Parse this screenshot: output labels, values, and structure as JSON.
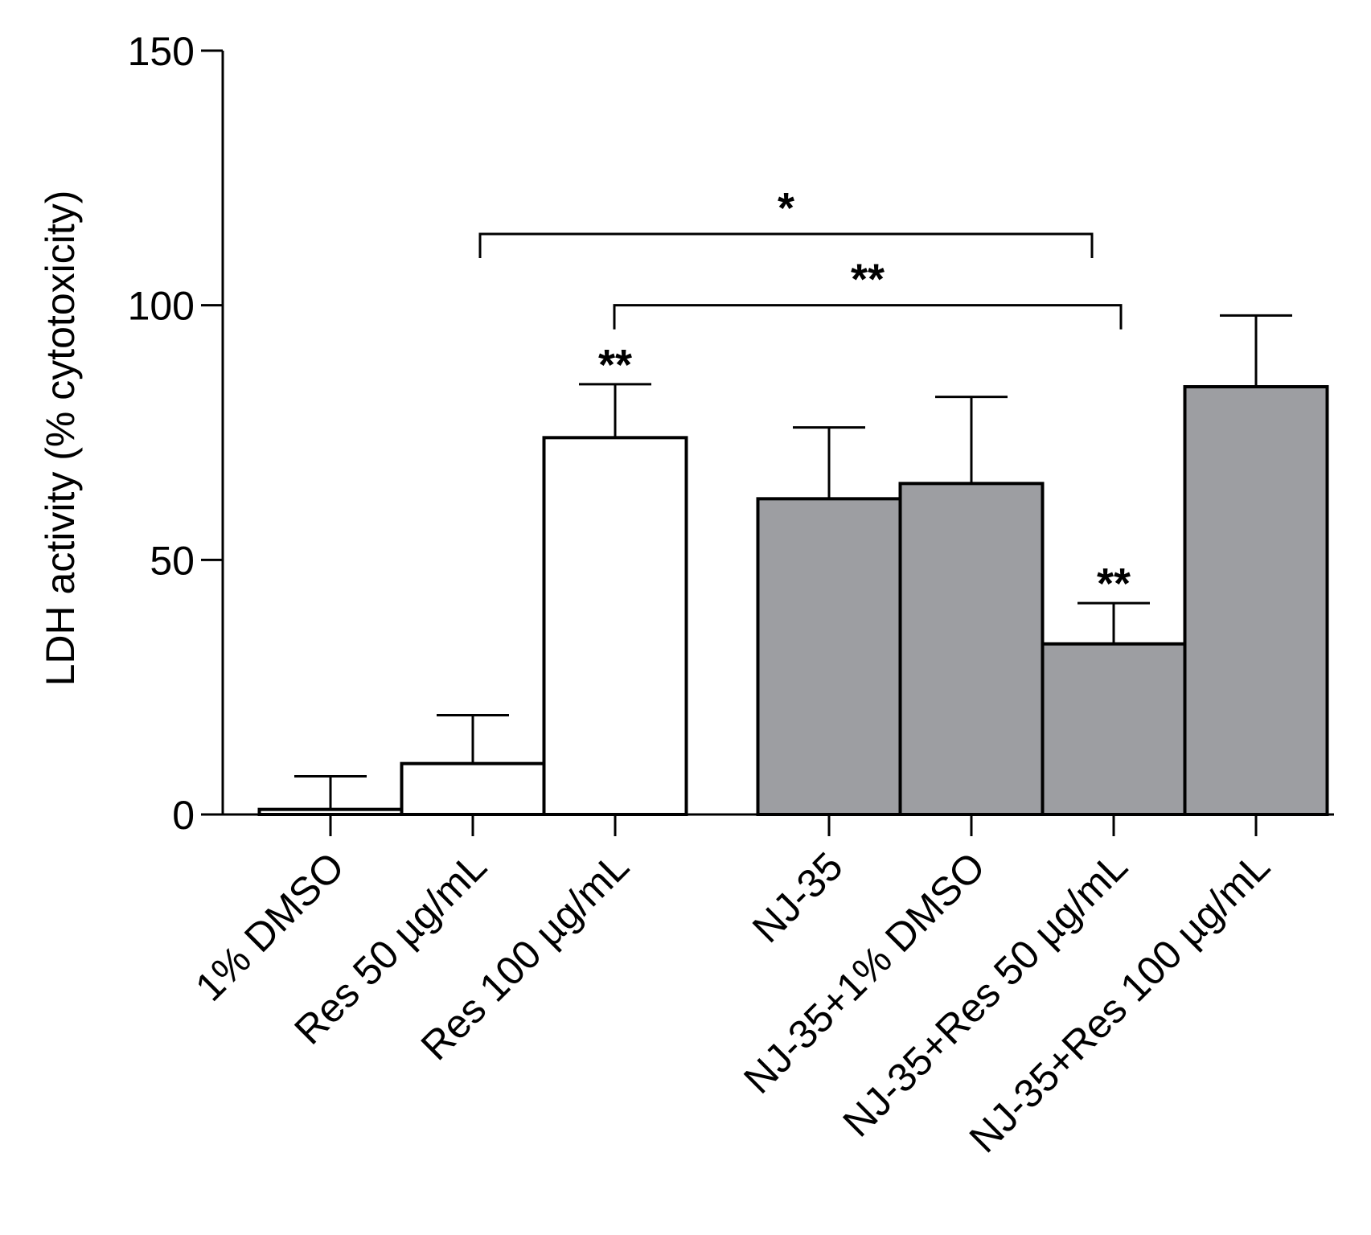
{
  "chart_data": {
    "type": "bar",
    "title": "",
    "xlabel": "",
    "ylabel": "LDH activity (% cytotoxicity)",
    "ylim": [
      0,
      150
    ],
    "yticks": [
      0,
      50,
      100,
      150
    ],
    "grid": false,
    "categories": [
      "1% DMSO",
      "Res 50 µg/mL",
      "Res 100 µg/mL",
      "NJ-35",
      "NJ-35+1% DMSO",
      "NJ-35+Res 50 µg/mL",
      "NJ-35+Res 100 µg/mL"
    ],
    "values": [
      1,
      10,
      74,
      62,
      65,
      33.5,
      84
    ],
    "errors": [
      6.5,
      9.5,
      10.5,
      14,
      17,
      8,
      14
    ],
    "groups": [
      0,
      0,
      0,
      1,
      1,
      1,
      1
    ],
    "group_colors": [
      "#ffffff",
      "#9d9ea2"
    ],
    "bar_annotations": [
      {
        "index": 2,
        "text": "**"
      },
      {
        "index": 5,
        "text": "**"
      }
    ],
    "comparisons": [
      {
        "from": 1,
        "to": 5,
        "text": "*",
        "y": 114
      },
      {
        "from": 2,
        "to": 5,
        "text": "**",
        "y": 100
      }
    ]
  }
}
